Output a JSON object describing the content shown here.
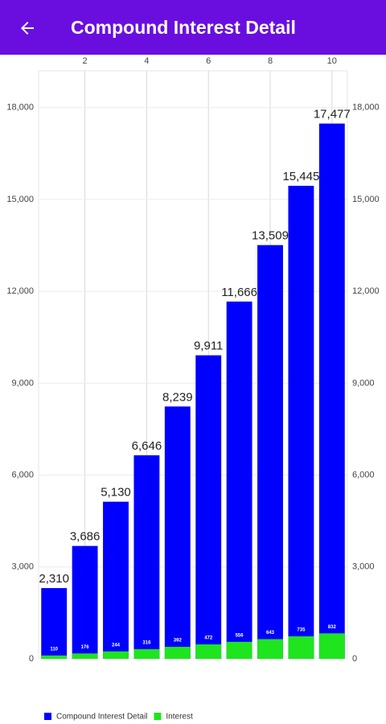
{
  "header": {
    "title": "Compound Interest Detail"
  },
  "chart_data": {
    "type": "bar",
    "x": [
      1,
      2,
      3,
      4,
      5,
      6,
      7,
      8,
      9,
      10
    ],
    "xlim": [
      0.5,
      10.5
    ],
    "xticks": [
      2,
      4,
      6,
      8,
      10
    ],
    "ylim": [
      0,
      19200
    ],
    "yticks": [
      0,
      {
        "value": 3000,
        "label": "3,000"
      },
      {
        "value": 6000,
        "label": "6,000"
      },
      {
        "value": 9000,
        "label": "9,000"
      },
      {
        "value": 12000,
        "label": "12,000"
      },
      {
        "value": 15000,
        "label": "15,000"
      },
      {
        "value": 18000,
        "label": "18,000"
      }
    ],
    "grid": true,
    "legend": "bottom-left",
    "series": [
      {
        "name": "Compound Interest Detail",
        "color": "#0000ff",
        "values": [
          2310,
          3686,
          5130,
          6646,
          8239,
          9911,
          11666,
          13509,
          15445,
          17477
        ],
        "value_labels": [
          "2,310",
          "3,686",
          "5,130",
          "6,646",
          "8,239",
          "9,911",
          "11,666",
          "13,509",
          "15,445",
          "17,477"
        ]
      },
      {
        "name": "Interest",
        "color": "#1ee51e",
        "values": [
          110,
          176,
          244,
          316,
          392,
          472,
          556,
          643,
          735,
          832
        ]
      }
    ]
  }
}
